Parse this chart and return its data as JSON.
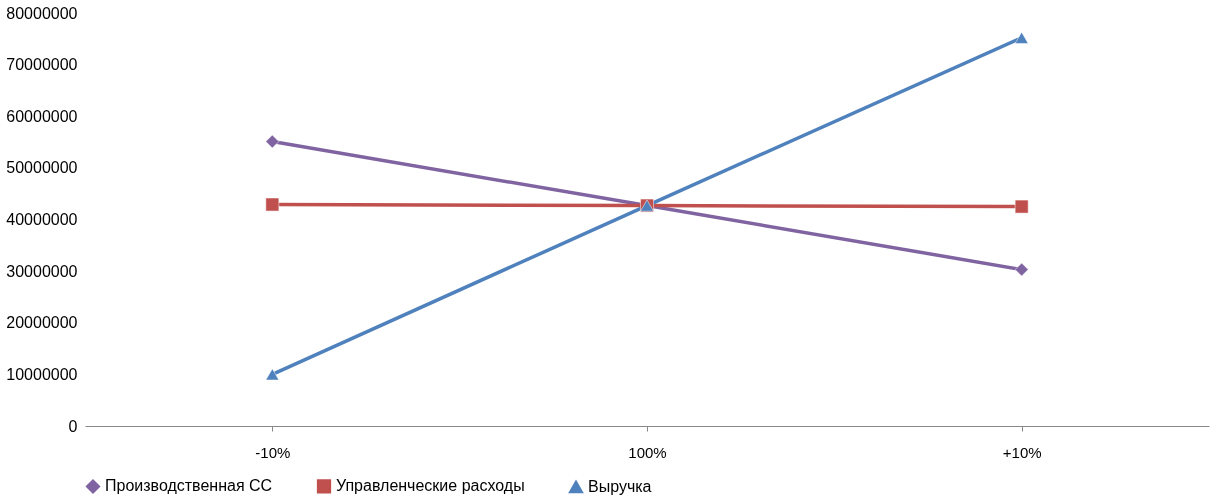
{
  "chart_data": {
    "type": "line",
    "categories": [
      "-10%",
      "100%",
      "+10%"
    ],
    "series": [
      {
        "name": "Производственная СС",
        "color": "#8064a2",
        "marker": "diamond",
        "values": [
          55100000,
          42700000,
          30300000
        ]
      },
      {
        "name": "Управленческие расходы",
        "color": "#c0504d",
        "marker": "square",
        "values": [
          42900000,
          42700000,
          42500000
        ]
      },
      {
        "name": "Выручка",
        "color": "#4f81bd",
        "marker": "triangle",
        "values": [
          10000000,
          42700000,
          75200000
        ]
      }
    ],
    "ylim": [
      0,
      80000000
    ],
    "yticks": [
      0,
      10000000,
      20000000,
      30000000,
      40000000,
      50000000,
      60000000,
      70000000,
      80000000
    ],
    "grid": false,
    "legend": "bottom",
    "line_style": "solid"
  }
}
